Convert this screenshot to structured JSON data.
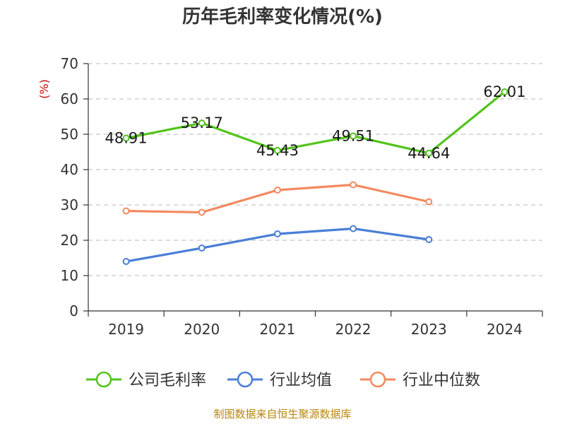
{
  "chart_data": {
    "type": "line",
    "title": "历年毛利率变化情况(%)",
    "ylabel": "(%)",
    "xlabel": "",
    "categories": [
      "2019",
      "2020",
      "2021",
      "2022",
      "2023",
      "2024"
    ],
    "ylim": [
      0,
      70
    ],
    "yticks": [
      "0",
      "10",
      "20",
      "30",
      "40",
      "50",
      "60",
      "70"
    ],
    "grid": true,
    "legend_position": "bottom",
    "series": [
      {
        "name": "公司毛利率",
        "color": "#52c41a",
        "values": [
          48.91,
          53.17,
          45.43,
          49.51,
          44.64,
          62.01
        ],
        "labels": [
          "48.91",
          "53.17",
          "45.43",
          "49.51",
          "44.64",
          "62.01"
        ]
      },
      {
        "name": "行业均值",
        "color": "#4a7fd6",
        "values": [
          14,
          17.8,
          21.8,
          23.3,
          20.2,
          null
        ]
      },
      {
        "name": "行业中位数",
        "color": "#f4895f",
        "values": [
          28.3,
          27.9,
          34.2,
          35.7,
          30.9,
          null
        ]
      }
    ],
    "source": "制图数据来自恒生聚源数据库"
  }
}
